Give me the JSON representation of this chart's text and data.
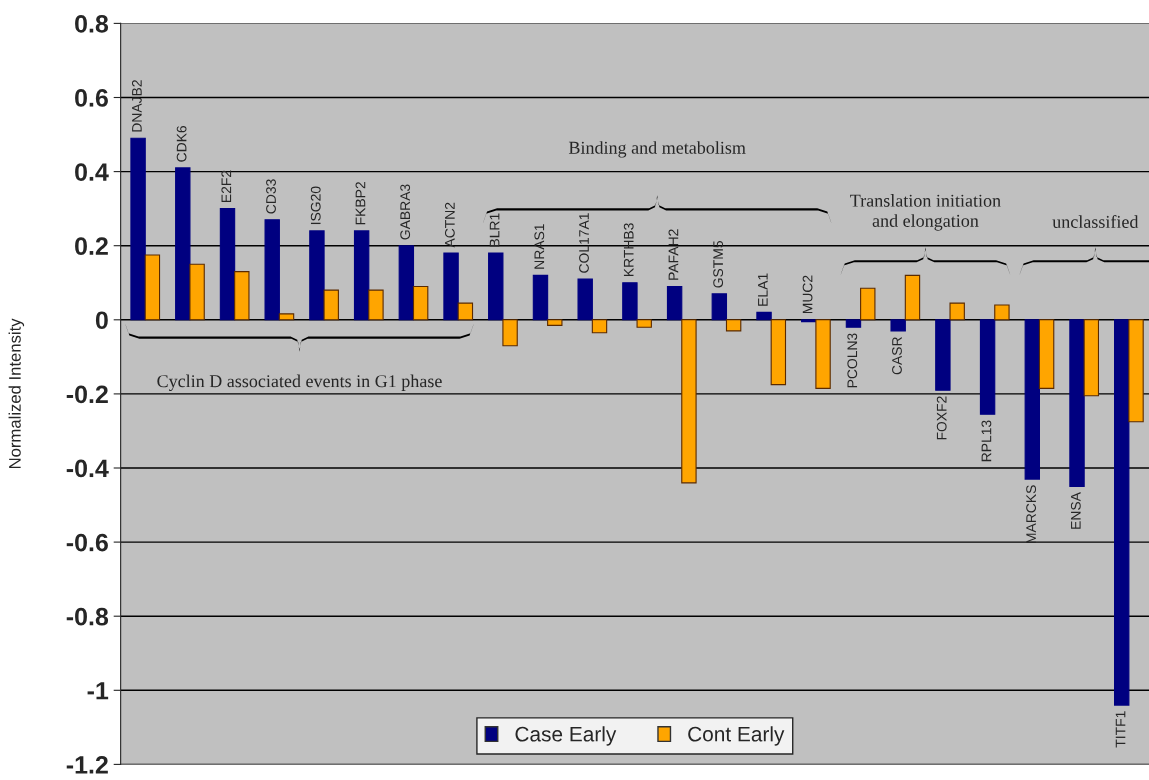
{
  "chart_data": {
    "type": "bar",
    "ylabel": "Normalized Intensity",
    "categories": [
      "DNAJB2",
      "CDK6",
      "E2F2",
      "CD33",
      "ISG20",
      "FKBP2",
      "GABRA3",
      "ACTN2",
      "BLR1",
      "NRAS1",
      "COL17A1",
      "KRTHB3",
      "PAFAH2",
      "GSTM5",
      "ELA1",
      "MUC2",
      "PCOLN3",
      "CASR",
      "FOXF2",
      "RPL13",
      "MARCKS",
      "ENSA",
      "TITF1"
    ],
    "series": [
      {
        "name": "Case Early",
        "color": "#000080",
        "values": [
          0.49,
          0.41,
          0.3,
          0.27,
          0.24,
          0.24,
          0.2,
          0.18,
          0.18,
          0.12,
          0.11,
          0.1,
          0.09,
          0.07,
          0.02,
          -0.005,
          -0.02,
          -0.03,
          -0.19,
          -0.255,
          -0.43,
          -0.45,
          -1.04
        ]
      },
      {
        "name": "Cont Early",
        "color": "#ffa500",
        "values": [
          0.175,
          0.15,
          0.13,
          0.016,
          0.08,
          0.08,
          0.09,
          0.045,
          -0.07,
          -0.015,
          -0.035,
          -0.02,
          -0.44,
          -0.03,
          -0.175,
          -0.185,
          0.085,
          0.12,
          0.045,
          0.04,
          -0.185,
          -0.205,
          -0.275
        ]
      }
    ],
    "ylim": [
      -1.2,
      0.8
    ],
    "yticks": [
      0.8,
      0.6,
      0.4,
      0.2,
      0,
      -0.2,
      -0.4,
      -0.6,
      -0.8,
      -1,
      -1.2
    ],
    "grid": "y",
    "legend": "bottom",
    "annotations": [
      "Cyclin D associated events in G1 phase",
      "Binding and metabolism",
      "Translation initiation\nand elongation",
      "unclassified"
    ]
  }
}
